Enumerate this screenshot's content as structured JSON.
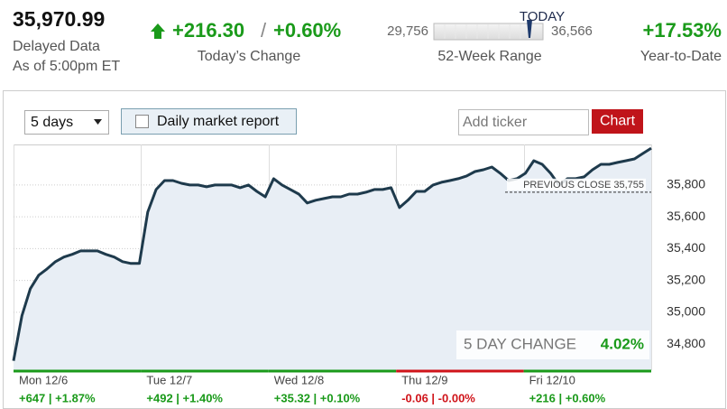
{
  "header": {
    "price": "35,970.99",
    "delayed": "Delayed Data",
    "as_of": "As of 5:00pm ET",
    "change": "+216.30",
    "separator": "/",
    "change_percent": "+0.60%",
    "change_label": "Today’s Change",
    "range_low": "29,756",
    "range_high": "36,566",
    "range_marker": "TODAY",
    "range_label": "52-Week Range",
    "ytd": "+17.53%",
    "ytd_label": "Year-to-Date"
  },
  "controls": {
    "period": "5 days",
    "checkbox": "Daily market report",
    "ticker_placeholder": "Add ticker",
    "button": "Chart"
  },
  "chart_data": {
    "type": "line",
    "series": [
      {
        "color": "#1e3a4c",
        "values": [
          34695,
          34978,
          35148,
          35233,
          35273,
          35318,
          35347,
          35364,
          35386,
          35386,
          35386,
          35364,
          35347,
          35318,
          35307,
          35307,
          35630,
          35772,
          35828,
          35828,
          35811,
          35800,
          35800,
          35789,
          35800,
          35800,
          35800,
          35783,
          35800,
          35760,
          35726,
          35840,
          35800,
          35772,
          35743,
          35687,
          35704,
          35715,
          35726,
          35726,
          35743,
          35743,
          35755,
          35772,
          35772,
          35783,
          35658,
          35704,
          35760,
          35760,
          35800,
          35817,
          35828,
          35840,
          35857,
          35885,
          35896,
          35913,
          35874,
          35828,
          35840,
          35874,
          35953,
          35930,
          35874,
          35800,
          35840,
          35840,
          35851,
          35896,
          35930,
          35930,
          35942,
          35953,
          35964,
          35998,
          36032
        ]
      }
    ],
    "ylim": [
      34636,
      36055
    ],
    "yticks": [
      {
        "value": 34800,
        "label": "34,800"
      },
      {
        "value": 35000,
        "label": "35,000"
      },
      {
        "value": 35200,
        "label": "35,200"
      },
      {
        "value": 35400,
        "label": "35,400"
      },
      {
        "value": 35600,
        "label": "35,600"
      },
      {
        "value": 35800,
        "label": "35,800"
      }
    ],
    "grid": true,
    "previous_close": {
      "value": 35755,
      "label": "PREVIOUS CLOSE 35,755"
    },
    "summary": {
      "label": "5 DAY CHANGE",
      "value": "4.02%"
    },
    "days": [
      {
        "label": "Mon 12/6",
        "change": "+647 | +1.87%",
        "color": "#1a9a1a"
      },
      {
        "label": "Tue 12/7",
        "change": "+492 | +1.40%",
        "color": "#1a9a1a"
      },
      {
        "label": "Wed 12/8",
        "change": "+35.32 | +0.10%",
        "color": "#1a9a1a"
      },
      {
        "label": "Thu 12/9",
        "change": "-0.06 | -0.00%",
        "color": "#d0141a"
      },
      {
        "label": "Fri 12/10",
        "change": "+216 | +0.60%",
        "color": "#1a9a1a"
      }
    ]
  }
}
